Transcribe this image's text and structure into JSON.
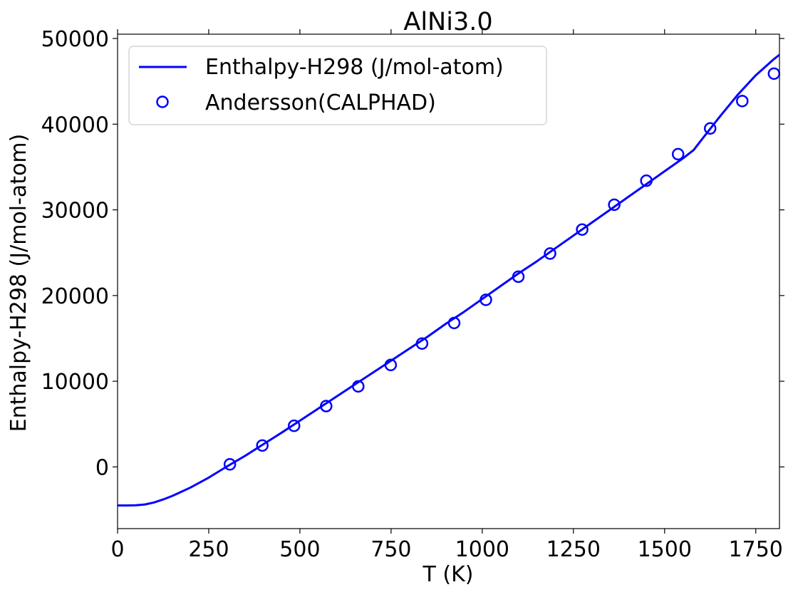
{
  "chart_data": {
    "type": "line",
    "title": "AlNi3.0",
    "xlabel": "T (K)",
    "ylabel": "Enthalpy-H298 (J/mol-atom)",
    "xlim": [
      0,
      1815
    ],
    "ylim": [
      -7200,
      50500
    ],
    "xticks": [
      0,
      250,
      500,
      750,
      1000,
      1250,
      1500,
      1750
    ],
    "yticks": [
      0,
      10000,
      20000,
      30000,
      40000,
      50000
    ],
    "grid": false,
    "legend_position": "top-left",
    "colors": {
      "series": "#0000ff"
    },
    "series": [
      {
        "name": "Enthalpy-H298 (J/mol-atom)",
        "style": "line",
        "x": [
          0,
          25,
          50,
          75,
          100,
          125,
          150,
          175,
          200,
          250,
          298,
          350,
          400,
          450,
          500,
          550,
          600,
          650,
          700,
          750,
          800,
          850,
          900,
          950,
          1000,
          1050,
          1100,
          1150,
          1200,
          1250,
          1300,
          1350,
          1400,
          1450,
          1500,
          1550,
          1580,
          1600,
          1650,
          1700,
          1750,
          1800,
          1815
        ],
        "values": [
          -4500,
          -4500,
          -4480,
          -4380,
          -4150,
          -3800,
          -3380,
          -2900,
          -2400,
          -1250,
          0,
          1300,
          2650,
          4000,
          5400,
          6800,
          8200,
          9600,
          11000,
          12400,
          13800,
          15200,
          16700,
          18100,
          19600,
          21100,
          22600,
          24000,
          25500,
          27000,
          28500,
          30000,
          31500,
          33000,
          34500,
          36000,
          37000,
          38100,
          40800,
          43400,
          45700,
          47600,
          48100
        ]
      },
      {
        "name": "Andersson(CALPHAD)",
        "style": "marker",
        "x": [
          308,
          397,
          484,
          572,
          660,
          749,
          835,
          923,
          1010,
          1099,
          1186,
          1274,
          1362,
          1450,
          1537,
          1625,
          1713,
          1800
        ],
        "values": [
          300,
          2500,
          4800,
          7100,
          9400,
          11900,
          14400,
          16800,
          19500,
          22200,
          24900,
          27700,
          30600,
          33400,
          36500,
          39500,
          42700,
          45900
        ]
      }
    ]
  }
}
